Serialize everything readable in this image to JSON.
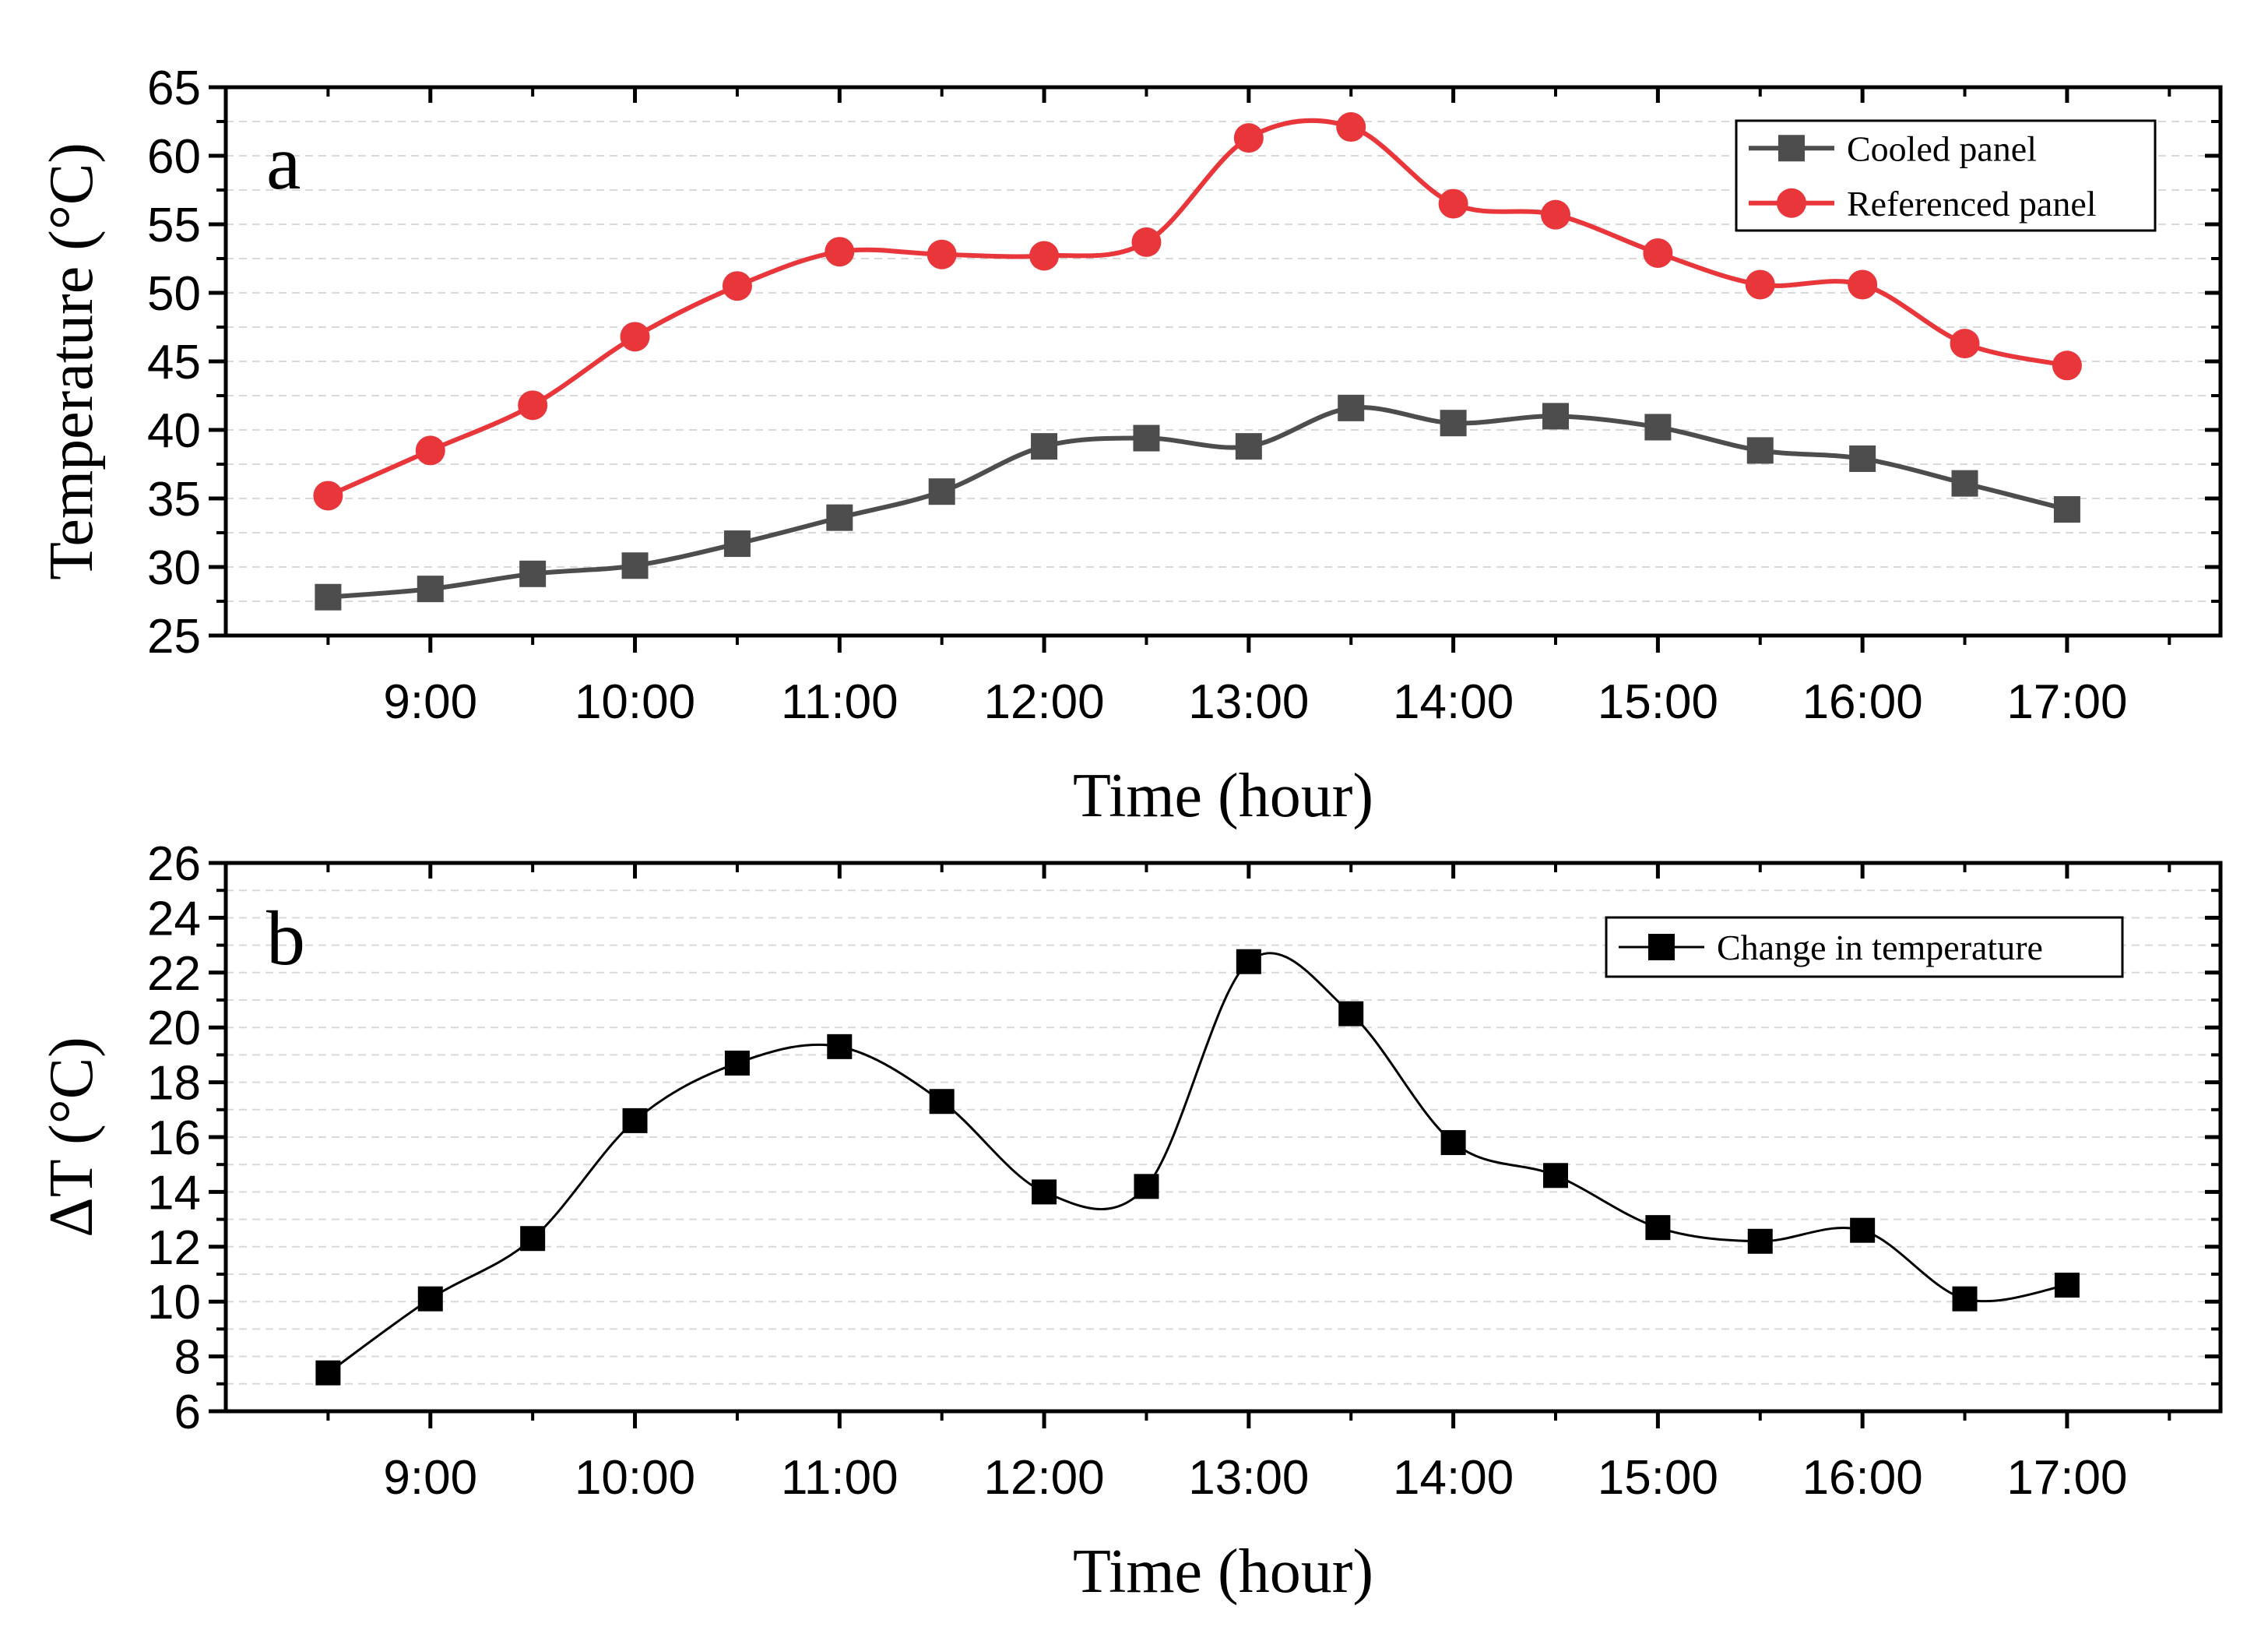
{
  "chart_data": [
    {
      "type": "line",
      "panel_label": "a",
      "xlabel": "Time (hour)",
      "ylabel": "Temperature (°C)",
      "x_ticks": [
        "9:00",
        "10:00",
        "11:00",
        "12:00",
        "13:00",
        "14:00",
        "15:00",
        "16:00",
        "17:00"
      ],
      "y_ticks": [
        "25",
        "30",
        "35",
        "40",
        "45",
        "50",
        "55",
        "60",
        "65"
      ],
      "xlim": [
        8.0,
        17.75
      ],
      "ylim": [
        25,
        65
      ],
      "grid": "horizontal dashed",
      "legend_position": "top-right",
      "x": [
        8.5,
        9.0,
        9.5,
        10.0,
        10.5,
        11.0,
        11.5,
        12.0,
        12.5,
        13.0,
        13.5,
        14.0,
        14.5,
        15.0,
        15.5,
        16.0,
        16.5,
        17.0
      ],
      "series": [
        {
          "name": "Cooled panel",
          "marker": "square",
          "color": "#4d4d4d",
          "values": [
            27.8,
            28.4,
            29.5,
            30.1,
            31.7,
            33.6,
            35.5,
            38.8,
            39.4,
            38.8,
            41.6,
            40.5,
            41.0,
            40.2,
            38.5,
            37.9,
            36.1,
            34.2
          ]
        },
        {
          "name": "Referenced panel",
          "marker": "circle",
          "color": "#e8363b",
          "values": [
            35.2,
            38.5,
            41.8,
            46.8,
            50.5,
            53.0,
            52.8,
            52.7,
            53.7,
            61.3,
            62.1,
            56.5,
            55.7,
            52.9,
            50.6,
            50.6,
            46.3,
            44.7
          ]
        }
      ]
    },
    {
      "type": "line",
      "panel_label": "b",
      "xlabel": "Time (hour)",
      "ylabel": "ΔT (°C)",
      "x_ticks": [
        "9:00",
        "10:00",
        "11:00",
        "12:00",
        "13:00",
        "14:00",
        "15:00",
        "16:00",
        "17:00"
      ],
      "y_ticks": [
        "6",
        "8",
        "10",
        "12",
        "14",
        "16",
        "18",
        "20",
        "22",
        "24",
        "26"
      ],
      "xlim": [
        8.0,
        17.75
      ],
      "ylim": [
        6,
        26
      ],
      "grid": "horizontal dashed",
      "legend_position": "top-right",
      "x": [
        8.5,
        9.0,
        9.5,
        10.0,
        10.5,
        11.0,
        11.5,
        12.0,
        12.5,
        13.0,
        13.5,
        14.0,
        14.5,
        15.0,
        15.5,
        16.0,
        16.5,
        17.0
      ],
      "series": [
        {
          "name": "Change in temperature",
          "marker": "square",
          "color": "#000000",
          "values": [
            7.4,
            10.1,
            12.3,
            16.6,
            18.7,
            19.3,
            17.3,
            14.0,
            14.2,
            22.4,
            20.5,
            15.8,
            14.6,
            12.7,
            12.2,
            12.6,
            10.1,
            10.6
          ]
        }
      ]
    }
  ]
}
